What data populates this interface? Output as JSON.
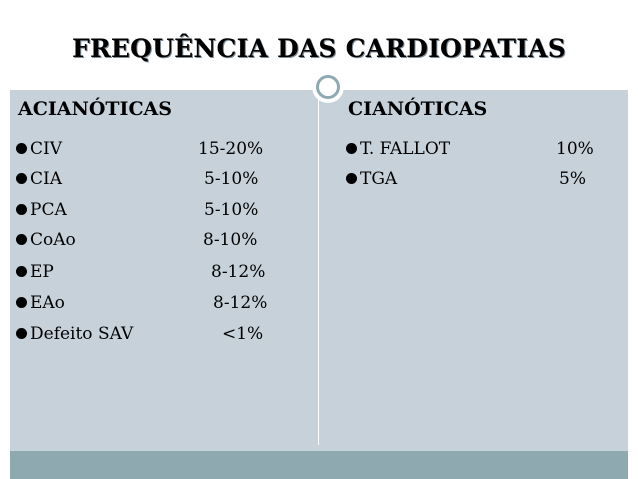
{
  "title": "FREQUÊNCIA DAS CARDIOPATIAS",
  "left": {
    "heading": "ACIANÓTICAS",
    "rows": [
      {
        "label": "CIV",
        "value": "15-20%"
      },
      {
        "label": "CIA",
        "value": "5-10%"
      },
      {
        "label": "PCA",
        "value": "5-10%"
      },
      {
        "label": "CoAo",
        "value": "8-10%"
      },
      {
        "label": "EP",
        "value": "8-12%"
      },
      {
        "label": "EAo",
        "value": "8-12%"
      },
      {
        "label": "Defeito SAV",
        "value": "<1%"
      }
    ]
  },
  "right": {
    "heading": "CIANÓTICAS",
    "rows": [
      {
        "label": "T. FALLOT",
        "value": "10%"
      },
      {
        "label": "TGA",
        "value": "5%"
      }
    ]
  },
  "colors": {
    "panel": "#c6d1d9",
    "footer": "#8fa9b1",
    "ring": "#8fa9b1"
  }
}
